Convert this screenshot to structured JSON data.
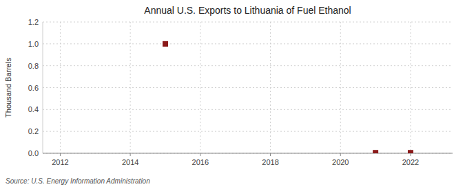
{
  "chart_data": {
    "type": "scatter",
    "title": "Annual U.S. Exports to Lithuania of Fuel Ethanol",
    "ylabel": "Thousand Barrels",
    "annotations": [
      "Source: U.S. Energy Information Administration"
    ],
    "x": [
      2015,
      2021,
      2022
    ],
    "values": [
      1.0,
      0.005,
      0.005
    ],
    "color": "#8B1A1A",
    "marker": "square",
    "xlim": [
      2011.5,
      2023.2
    ],
    "ylim": [
      0.0,
      1.2
    ],
    "xticks": [
      2012,
      2014,
      2016,
      2018,
      2020,
      2022
    ],
    "yticks": [
      {
        "value": 0.0,
        "label": "0.0"
      },
      0.2,
      0.4,
      0.6,
      0.8,
      {
        "value": 1.0,
        "label": "1.0"
      },
      1.2
    ],
    "grid": true
  }
}
